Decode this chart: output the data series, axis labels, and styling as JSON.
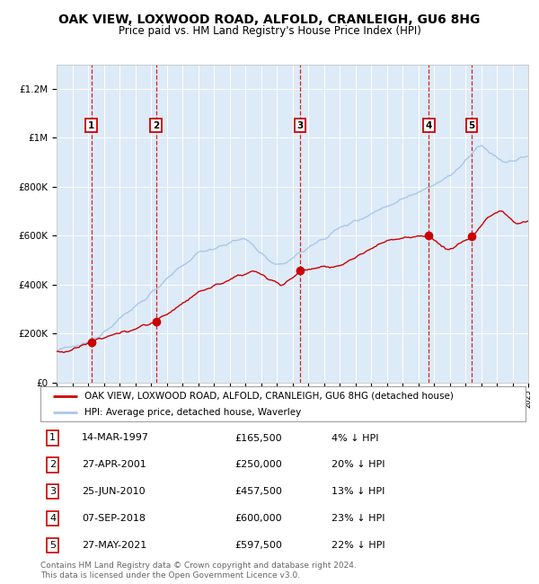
{
  "title": "OAK VIEW, LOXWOOD ROAD, ALFOLD, CRANLEIGH, GU6 8HG",
  "subtitle": "Price paid vs. HM Land Registry's House Price Index (HPI)",
  "ylim": [
    0,
    1300000
  ],
  "yticks": [
    0,
    200000,
    400000,
    600000,
    800000,
    1000000,
    1200000
  ],
  "ytick_labels": [
    "£0",
    "£200K",
    "£400K",
    "£600K",
    "£800K",
    "£1M",
    "£1.2M"
  ],
  "x_start_year": 1995,
  "x_end_year": 2025,
  "background_color": "#ffffff",
  "plot_bg_color": "#ddeaf7",
  "grid_color": "#ffffff",
  "hpi_line_color": "#a8c8e8",
  "price_line_color": "#cc0000",
  "purchase_marker_color": "#cc0000",
  "dashed_line_color": "#cc0000",
  "legend_label_red": "OAK VIEW, LOXWOOD ROAD, ALFOLD, CRANLEIGH, GU6 8HG (detached house)",
  "legend_label_blue": "HPI: Average price, detached house, Waverley",
  "purchases": [
    {
      "num": 1,
      "year": 1997.2,
      "price": 165500,
      "label": "14-MAR-1997",
      "price_str": "£165,500",
      "hpi_str": "4% ↓ HPI"
    },
    {
      "num": 2,
      "year": 2001.32,
      "price": 250000,
      "label": "27-APR-2001",
      "price_str": "£250,000",
      "hpi_str": "20% ↓ HPI"
    },
    {
      "num": 3,
      "year": 2010.48,
      "price": 457500,
      "label": "25-JUN-2010",
      "price_str": "£457,500",
      "hpi_str": "13% ↓ HPI"
    },
    {
      "num": 4,
      "year": 2018.68,
      "price": 600000,
      "label": "07-SEP-2018",
      "price_str": "£600,000",
      "hpi_str": "23% ↓ HPI"
    },
    {
      "num": 5,
      "year": 2021.41,
      "price": 597500,
      "label": "27-MAY-2021",
      "price_str": "£597,500",
      "hpi_str": "22% ↓ HPI"
    }
  ],
  "footer_line1": "Contains HM Land Registry data © Crown copyright and database right 2024.",
  "footer_line2": "This data is licensed under the Open Government Licence v3.0.",
  "title_fontsize": 10,
  "subtitle_fontsize": 8.5,
  "axis_fontsize": 7.5,
  "legend_fontsize": 7.5,
  "table_fontsize": 8,
  "footer_fontsize": 6.5
}
